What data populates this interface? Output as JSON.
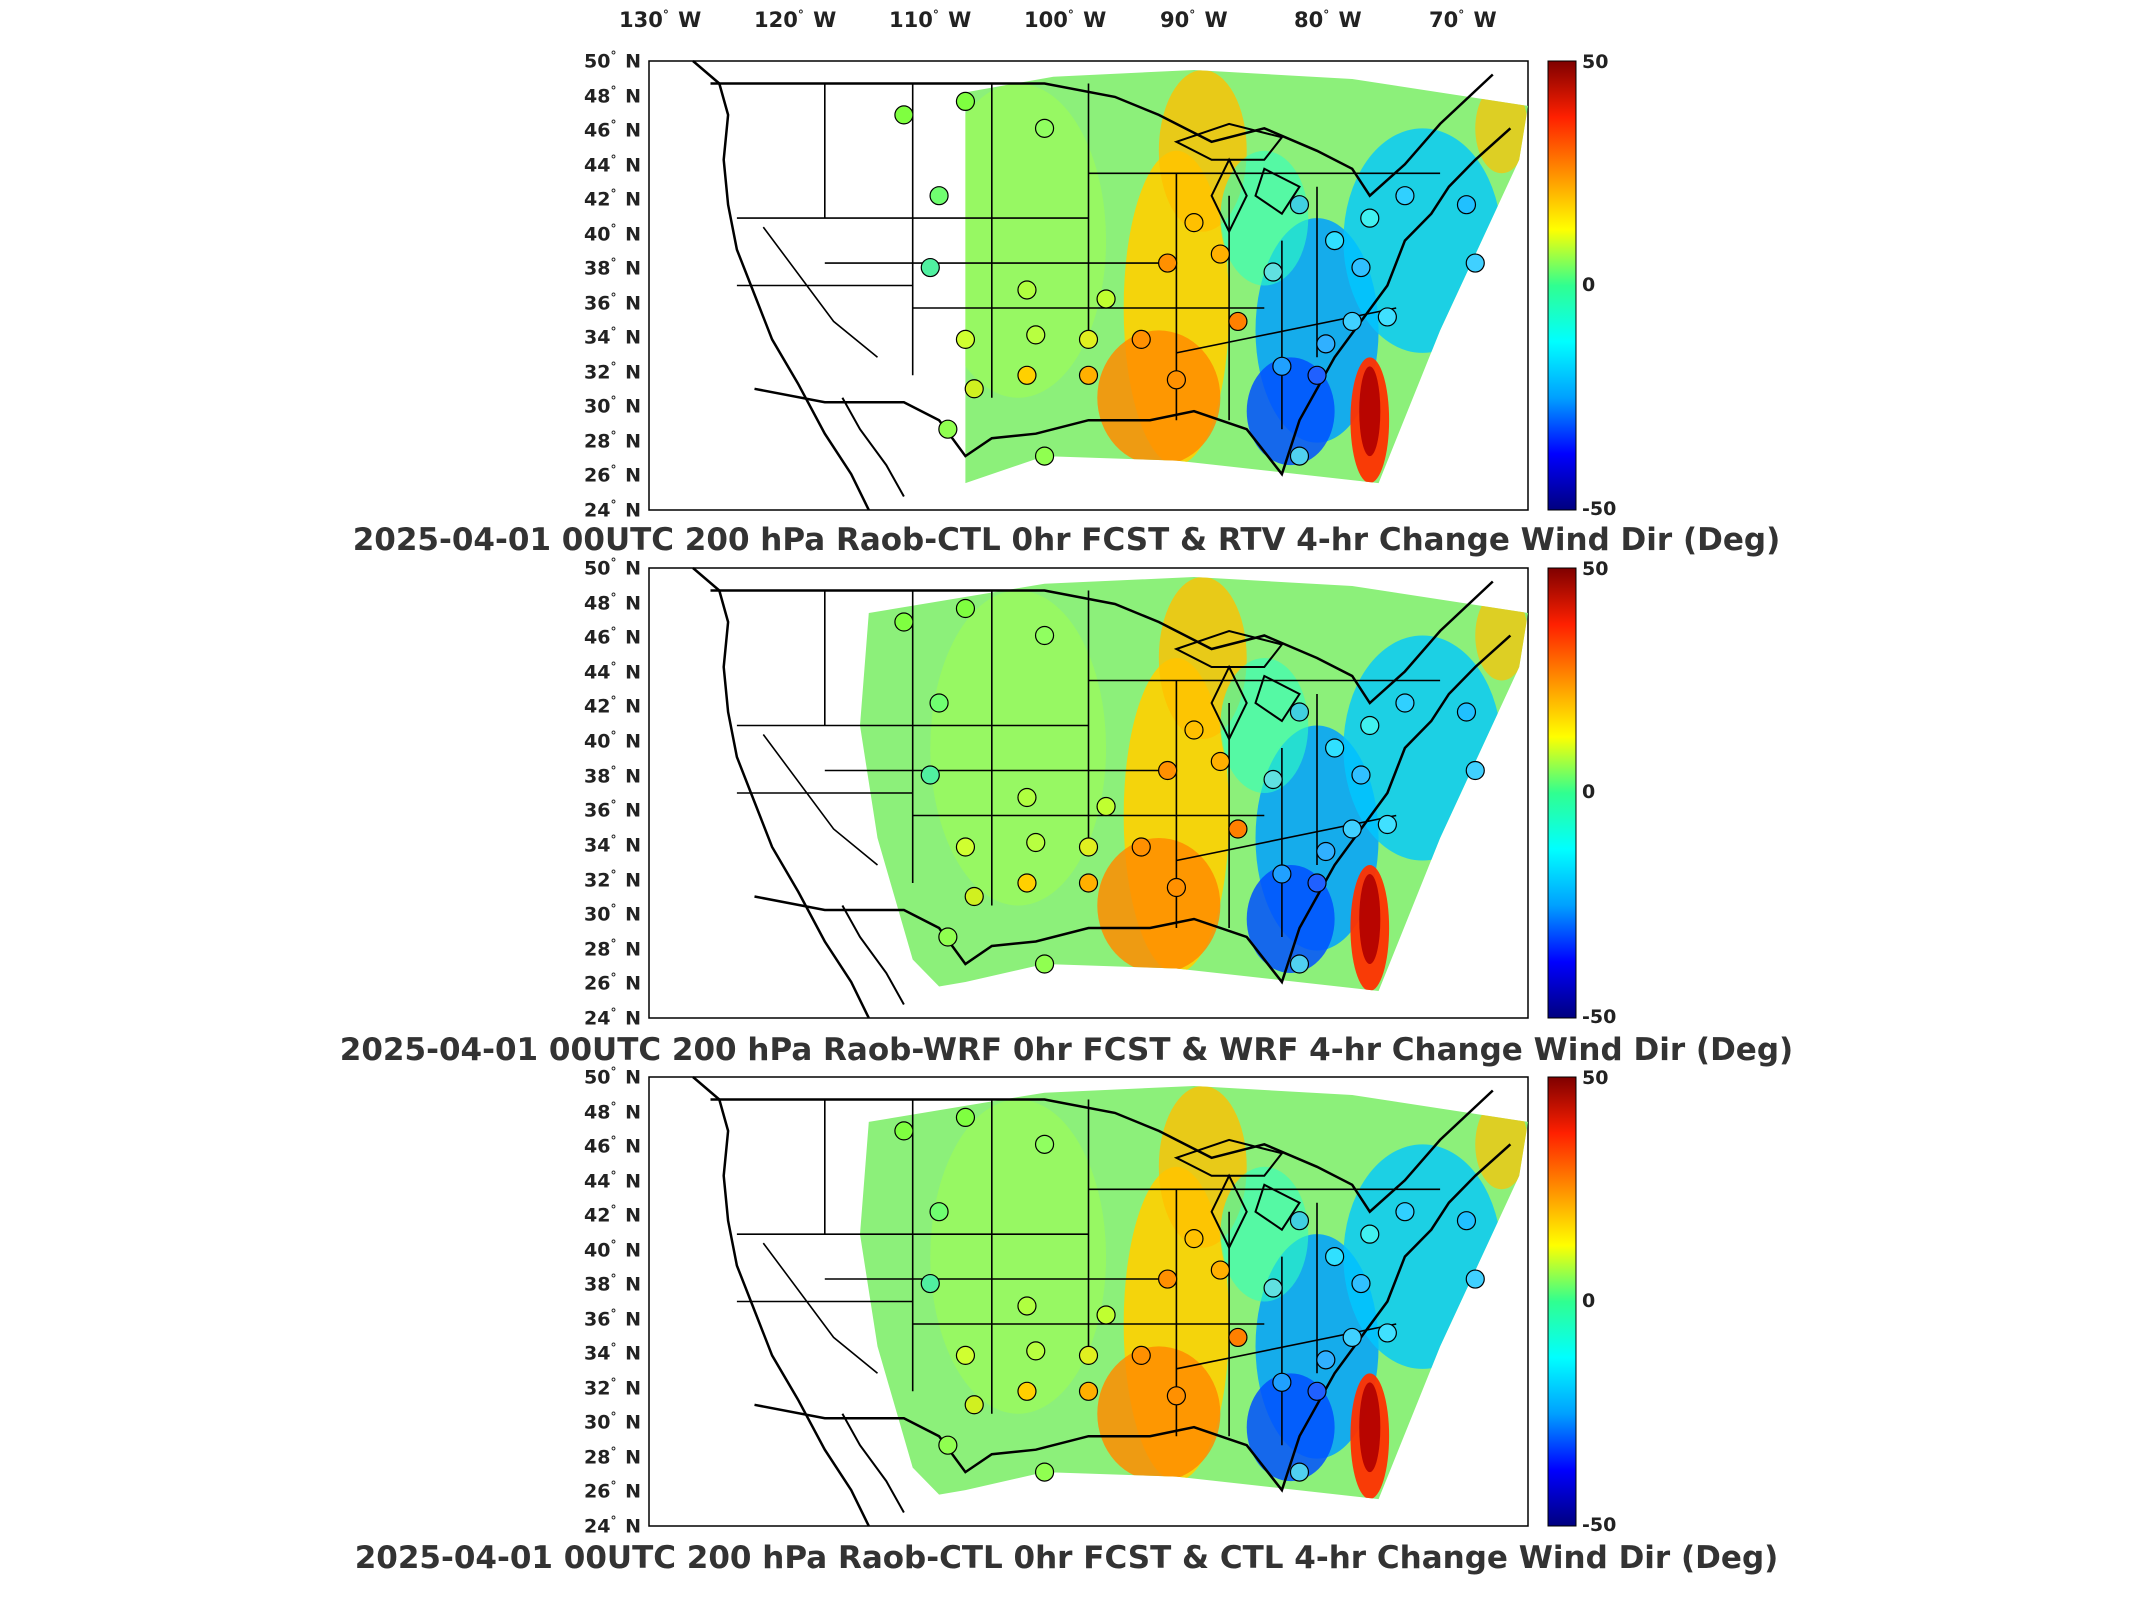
{
  "lon_labels": [
    "130",
    "120",
    "110",
    "100",
    "90",
    "80",
    "70"
  ],
  "lon_suffix": "W",
  "lat_labels": [
    "50",
    "48",
    "46",
    "44",
    "42",
    "40",
    "38",
    "36",
    "34",
    "32",
    "30",
    "28",
    "26",
    "24"
  ],
  "lat_suffix": "N",
  "colorbar": {
    "max_label": "50",
    "mid_label": "0",
    "min_label": "-50",
    "colors": [
      "#00007f",
      "#0000ff",
      "#00a0ff",
      "#00ffff",
      "#30ff90",
      "#ffff00",
      "#ff9000",
      "#ff2000",
      "#7f0000"
    ]
  },
  "panels": [
    {
      "title": "2025-04-01 00UTC 200 hPa Raob-CTL 0hr FCST & RTV 4-hr Change Wind Dir (Deg)"
    },
    {
      "title": "2025-04-01 00UTC 200 hPa Raob-WRF 0hr FCST & WRF 4-hr Change Wind Dir (Deg)"
    },
    {
      "title": "2025-04-01 00UTC 200 hPa Raob-CTL 0hr FCST & CTL 4-hr Change Wind Dir (Deg)"
    }
  ],
  "station_symbol": "circle"
}
